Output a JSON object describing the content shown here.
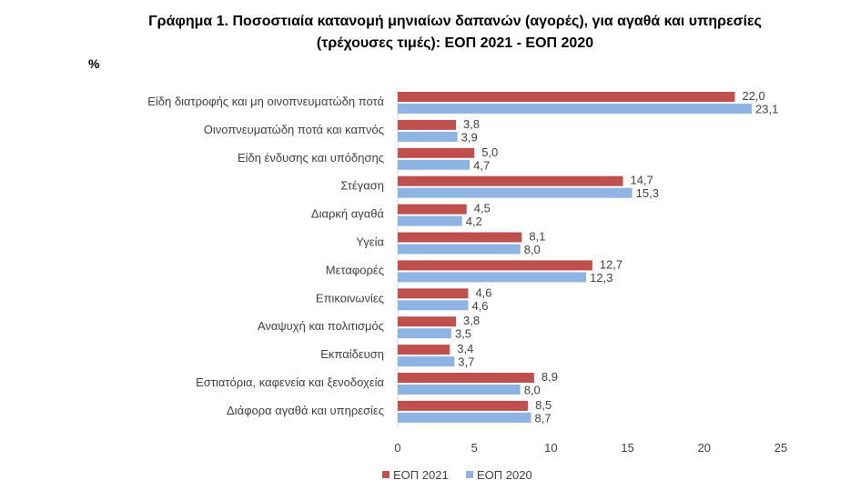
{
  "chart_data": {
    "type": "bar",
    "orientation": "horizontal",
    "title_line1": "Γράφημα 1. Ποσοστιαία κατανομή μηνιαίων δαπανών (αγορές), για αγαθά και υπηρεσίες",
    "title_line2": "(τρέχουσες τιμές): ΕΟΠ 2021 - ΕΟΠ 2020",
    "ylabel": "%",
    "categories": [
      "Είδη διατροφής και μη οινοπνευματώδη ποτά",
      "Οινοπνευματώδη ποτά και καπνός",
      "Είδη ένδυσης και υπόδησης",
      "Στέγαση",
      "Διαρκή αγαθά",
      "Υγεία",
      "Μεταφορές",
      "Επικοινωνίες",
      "Αναψυχή και πολιτισμός",
      "Εκπαίδευση",
      "Εστιατόρια, καφενεία  και ξενοδοχεία",
      "Διάφορα αγαθά και υπηρεσίες"
    ],
    "series": [
      {
        "name": "ΕΟΠ 2021",
        "color": "#C0504D",
        "values": [
          22.0,
          3.8,
          5.0,
          14.7,
          4.5,
          8.1,
          12.7,
          4.6,
          3.8,
          3.4,
          8.9,
          8.5
        ],
        "labels": [
          "22,0",
          "3,8",
          "5,0",
          "14,7",
          "4,5",
          "8,1",
          "12,7",
          "4,6",
          "3,8",
          "3,4",
          "8,9",
          "8,5"
        ]
      },
      {
        "name": "ΕΟΠ 2020",
        "color": "#8DB4E2",
        "values": [
          23.1,
          3.9,
          4.7,
          15.3,
          4.2,
          8.0,
          12.3,
          4.6,
          3.5,
          3.7,
          8.0,
          8.7
        ],
        "labels": [
          "23,1",
          "3,9",
          "4,7",
          "15,3",
          "4,2",
          "8,0",
          "12,3",
          "4,6",
          "3,5",
          "3,7",
          "8,0",
          "8,7"
        ]
      }
    ],
    "xlim": [
      0,
      25
    ],
    "xticks": [
      "0",
      "5",
      "10",
      "15",
      "20",
      "25"
    ],
    "grid": false,
    "legend": "bottom"
  }
}
